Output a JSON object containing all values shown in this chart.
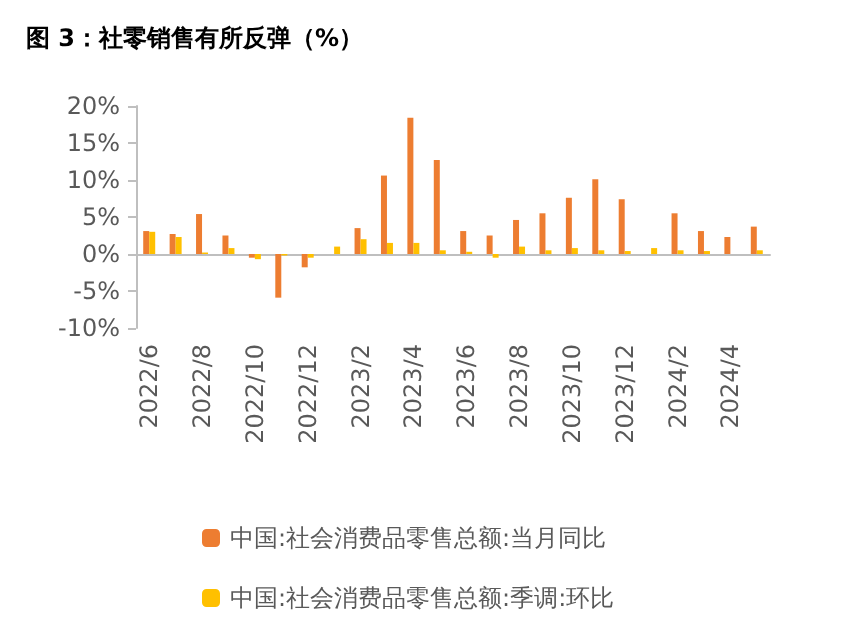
{
  "chart_data": {
    "type": "bar",
    "title": "图 3：社零销售有所反弹（%）",
    "categories": [
      "2022/6",
      null,
      "2022/8",
      null,
      "2022/10",
      null,
      "2022/12",
      null,
      "2023/2",
      null,
      "2023/4",
      null,
      "2023/6",
      null,
      "2023/8",
      null,
      "2023/10",
      null,
      "2023/12",
      null,
      "2024/2",
      null,
      "2024/4",
      null
    ],
    "series": [
      {
        "name": "中国:社会消费品零售总额:当月同比",
        "color": "#ed7d31",
        "values": [
          3.1,
          2.7,
          5.4,
          2.5,
          -0.5,
          -5.9,
          -1.8,
          null,
          3.5,
          10.6,
          18.4,
          12.7,
          3.1,
          2.5,
          4.6,
          5.5,
          7.6,
          10.1,
          7.4,
          null,
          5.5,
          3.1,
          2.3,
          3.7
        ]
      },
      {
        "name": "中国:社会消费品零售总额:季调:环比",
        "color": "#ffc000",
        "values": [
          3.0,
          2.3,
          0.2,
          0.8,
          -0.7,
          -0.2,
          -0.5,
          1.0,
          2.0,
          1.5,
          1.5,
          0.5,
          0.3,
          -0.5,
          1.0,
          0.5,
          0.8,
          0.5,
          0.4,
          0.8,
          0.5,
          0.4,
          null,
          0.5
        ]
      }
    ],
    "ylim": [
      -10,
      20
    ],
    "yticks": [
      {
        "value": -10,
        "label": "-10%"
      },
      {
        "value": -5,
        "label": "-5%"
      },
      {
        "value": 0,
        "label": "0%"
      },
      {
        "value": 5,
        "label": "5%"
      },
      {
        "value": 10,
        "label": "10%"
      },
      {
        "value": 15,
        "label": "15%"
      },
      {
        "value": 20,
        "label": "20%"
      }
    ],
    "legend": "bottom"
  }
}
